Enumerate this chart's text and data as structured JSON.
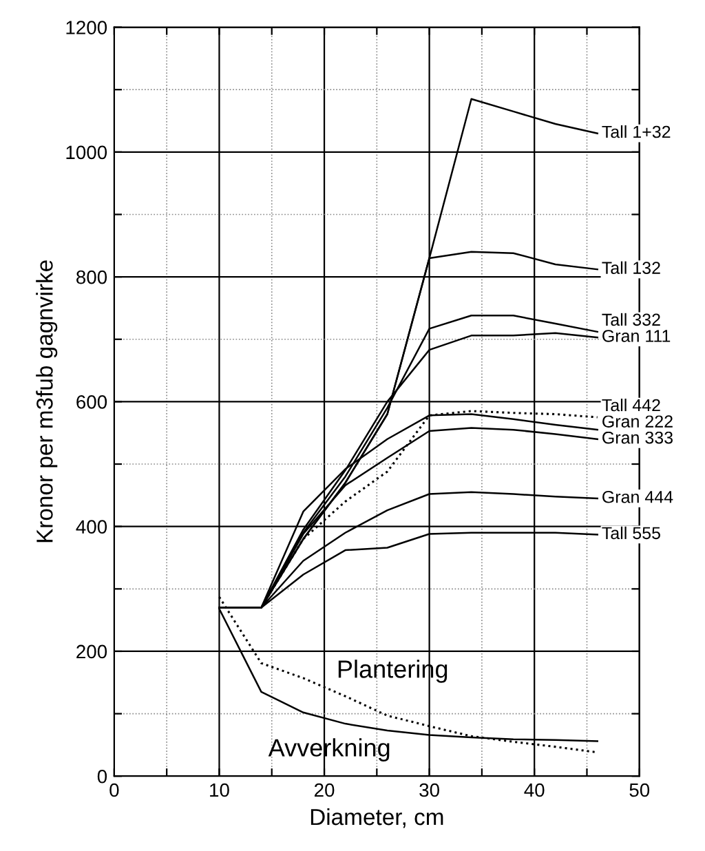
{
  "chart_data": {
    "type": "line",
    "xlabel": "Diameter, cm",
    "ylabel": "Kronor per m3fub gagnvirke",
    "x": [
      10,
      14,
      18,
      22,
      26,
      30,
      34,
      38,
      42,
      46
    ],
    "xlim": [
      0,
      50
    ],
    "ylim": [
      0,
      1200
    ],
    "xticks": [
      0,
      {
        "value": 5,
        "label": null
      },
      10,
      {
        "value": 15,
        "label": null
      },
      20,
      {
        "value": 25,
        "label": null
      },
      30,
      {
        "value": 35,
        "label": null
      },
      40,
      {
        "value": 45,
        "label": null
      },
      50
    ],
    "yticks": [
      0,
      {
        "value": 100,
        "label": null
      },
      200,
      {
        "value": 300,
        "label": null
      },
      400,
      {
        "value": 500,
        "label": null
      },
      600,
      {
        "value": 700,
        "label": null
      },
      800,
      {
        "value": 900,
        "label": null
      },
      1000,
      {
        "value": 1100,
        "label": null
      },
      1200
    ],
    "grid": true,
    "legend": "right",
    "marker": "none",
    "series": [
      {
        "name": "Tall 1+32",
        "color": "#000000",
        "line_style": "solid",
        "values": [
          270,
          270,
          380,
          470,
          580,
          830,
          1085,
          1065,
          1045,
          1030
        ]
      },
      {
        "name": "Tall 132",
        "color": "#000000",
        "line_style": "solid",
        "values": [
          270,
          270,
          380,
          470,
          580,
          830,
          840,
          838,
          820,
          812
        ]
      },
      {
        "name": "Tall 332",
        "color": "#000000",
        "line_style": "solid",
        "values": [
          270,
          270,
          390,
          480,
          590,
          717,
          738,
          738,
          725,
          712
        ]
      },
      {
        "name": "Gran 111",
        "color": "#000000",
        "line_style": "solid",
        "values": [
          270,
          270,
          395,
          490,
          600,
          683,
          706,
          706,
          710,
          703
        ]
      },
      {
        "name": "Tall 442",
        "color": "#000000",
        "line_style": "dotted",
        "values": [
          270,
          270,
          380,
          440,
          488,
          578,
          585,
          582,
          580,
          575
        ]
      },
      {
        "name": "Gran 222",
        "color": "#000000",
        "line_style": "solid",
        "values": [
          270,
          270,
          424,
          492,
          540,
          578,
          580,
          572,
          563,
          555
        ]
      },
      {
        "name": "Gran 333",
        "color": "#000000",
        "line_style": "solid",
        "values": [
          270,
          270,
          388,
          466,
          510,
          553,
          558,
          555,
          548,
          540
        ]
      },
      {
        "name": "Gran 444",
        "color": "#000000",
        "line_style": "solid",
        "values": [
          270,
          270,
          345,
          390,
          426,
          452,
          455,
          452,
          448,
          445
        ]
      },
      {
        "name": "Tall 555",
        "color": "#000000",
        "line_style": "solid",
        "values": [
          270,
          270,
          323,
          362,
          366,
          388,
          390,
          390,
          390,
          387
        ]
      },
      {
        "color": "#000000",
        "line_style": "dotted",
        "values": [
          287,
          181,
          157,
          128,
          97,
          80,
          64,
          55,
          47,
          38
        ]
      },
      {
        "color": "#000000",
        "line_style": "solid",
        "values": [
          268,
          135,
          102,
          84,
          73,
          66,
          62,
          59,
          58,
          56
        ]
      }
    ],
    "annotations": [
      "Plantering",
      "Avverkning"
    ]
  }
}
